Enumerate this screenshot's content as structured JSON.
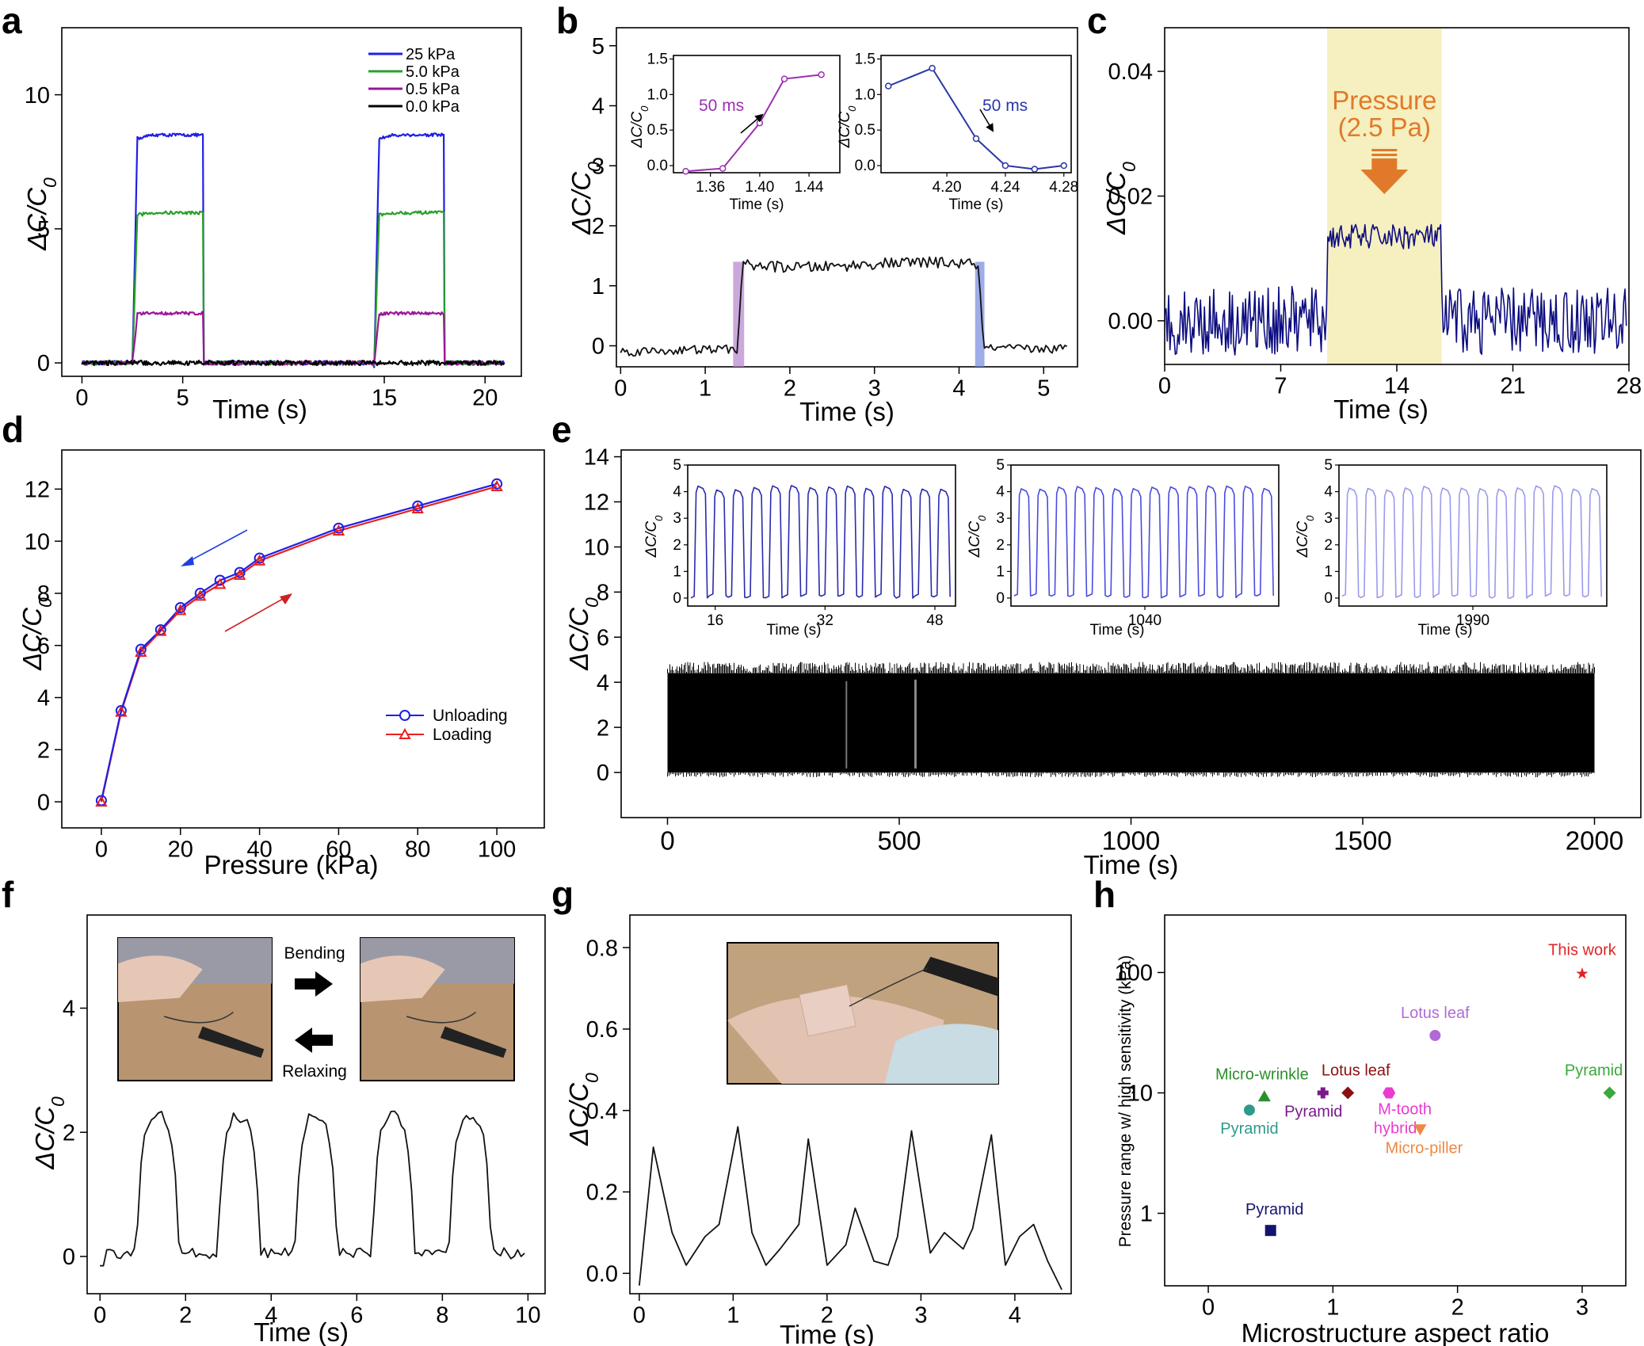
{
  "figure": {
    "panel_letters": [
      "a",
      "b",
      "c",
      "d",
      "e",
      "f",
      "g",
      "h"
    ]
  },
  "chart_data": [
    {
      "id": "a",
      "type": "line",
      "xlabel": "Time (s)",
      "ylabel": "ΔC/C0",
      "xlim": [
        -1,
        21.8
      ],
      "ylim": [
        -0.5,
        12.5
      ],
      "xticks": [
        0,
        5,
        15,
        20
      ],
      "yticks": [
        0,
        5,
        10
      ],
      "pulses": [
        [
          2.5,
          6.0
        ],
        [
          14.5,
          18.0
        ]
      ],
      "series": [
        {
          "name": "25 kPa",
          "color": "#1f1fe6",
          "plateau": 8.5
        },
        {
          "name": "5.0 kPa",
          "color": "#2aa02a",
          "plateau": 5.6
        },
        {
          "name": "0.5 kPa",
          "color": "#9b159b",
          "plateau": 1.85
        },
        {
          "name": "0.0 kPa",
          "color": "#000000",
          "plateau": 0.0
        }
      ]
    },
    {
      "id": "b",
      "type": "line",
      "xlabel": "Time (s)",
      "ylabel": "ΔC/C0",
      "xlim": [
        -0.05,
        5.4
      ],
      "ylim": [
        -0.35,
        5.3
      ],
      "xticks": [
        0,
        1,
        2,
        3,
        4,
        5
      ],
      "yticks": [
        0,
        1,
        2,
        3,
        4,
        5
      ],
      "on_time": 1.38,
      "off_time": 4.23,
      "baseline": -0.1,
      "plateau": 1.35,
      "insets": [
        {
          "xlabel": "Time (s)",
          "ylabel": "ΔC/C0",
          "color": "#9b30b0",
          "annotation": "50 ms",
          "xlim": [
            1.33,
            1.465
          ],
          "ylim": [
            -0.1,
            1.55
          ],
          "xticks": [
            1.36,
            1.4,
            1.44
          ],
          "ytick_labels": [
            "1.5",
            "1.0",
            "0.5",
            "0.0"
          ],
          "x": [
            1.34,
            1.37,
            1.4,
            1.42,
            1.45
          ],
          "y": [
            -0.08,
            -0.04,
            0.6,
            1.22,
            1.28
          ]
        },
        {
          "xlabel": "Time (s)",
          "ylabel": "ΔC/C0",
          "color": "#2b36a8",
          "annotation": "50 ms",
          "xlim": [
            4.155,
            4.285
          ],
          "ylim": [
            -0.1,
            1.55
          ],
          "xticks": [
            4.2,
            4.24,
            4.28
          ],
          "ytick_labels": [
            "1.5",
            "1.0",
            "0.5",
            "0.0"
          ],
          "x": [
            4.16,
            4.19,
            4.22,
            4.24,
            4.26,
            4.28
          ],
          "y": [
            1.12,
            1.37,
            0.38,
            0.0,
            -0.05,
            0.0
          ]
        }
      ]
    },
    {
      "id": "c",
      "type": "line",
      "xlabel": "Time (s)",
      "ylabel": "ΔC/C0",
      "xlim": [
        0,
        28
      ],
      "ylim": [
        -0.007,
        0.047
      ],
      "xticks": [
        0,
        7,
        14,
        21,
        28
      ],
      "ytick_labels": [
        "0.00",
        "0.02",
        "0.04"
      ],
      "yticks": [
        0,
        0.02,
        0.04
      ],
      "highlight": [
        9.8,
        16.7
      ],
      "annotation": [
        "Pressure",
        "(2.5 Pa)"
      ],
      "baseline": 0.0,
      "plateau": 0.0135,
      "color": "#0c0c80"
    },
    {
      "id": "d",
      "type": "line",
      "xlabel": "Pressure (kPa)",
      "ylabel": "ΔC/C0",
      "xlim": [
        -10,
        112
      ],
      "ylim": [
        -1,
        13.5
      ],
      "xticks": [
        0,
        20,
        40,
        60,
        80,
        100
      ],
      "yticks": [
        0,
        2,
        4,
        6,
        8,
        10,
        12
      ],
      "x": [
        0,
        5,
        10,
        15,
        20,
        25,
        30,
        35,
        40,
        60,
        80,
        100
      ],
      "series": [
        {
          "name": "Unloading",
          "color": "#1f1fe6",
          "marker": "circle",
          "values": [
            0.05,
            3.5,
            5.85,
            6.6,
            7.45,
            8.0,
            8.5,
            8.8,
            9.35,
            10.5,
            11.35,
            12.2
          ]
        },
        {
          "name": "Loading",
          "color": "#e62020",
          "marker": "triangle",
          "values": [
            0.0,
            3.45,
            5.75,
            6.55,
            7.35,
            7.9,
            8.35,
            8.7,
            9.25,
            10.4,
            11.25,
            12.1
          ]
        }
      ]
    },
    {
      "id": "e",
      "type": "line",
      "xlabel": "Time (s)",
      "ylabel": "ΔC/C0",
      "xlim": [
        -100,
        2100
      ],
      "ylim": [
        -2,
        14.3
      ],
      "xticks": [
        0,
        500,
        1000,
        1500,
        2000
      ],
      "yticks": [
        0,
        2,
        4,
        6,
        8,
        10,
        12,
        14
      ],
      "cycle_amplitude": 4.4,
      "insets": [
        {
          "xlabel": "Time (s)",
          "ylabel": "ΔC/C0",
          "color": "#2a2ab0",
          "xlim": [
            12,
            51
          ],
          "xticks": [
            16,
            32,
            48
          ],
          "xtick_labels": [
            "16",
            "32",
            "48"
          ],
          "ylim": [
            -0.3,
            5
          ],
          "yticks": [
            0,
            1,
            2,
            3,
            4,
            5
          ]
        },
        {
          "xlabel": "Time (s)",
          "ylabel": "ΔC/C0",
          "color": "#4b4be0",
          "xlim": [
            1020,
            1060
          ],
          "xticks": [
            1040
          ],
          "xtick_labels": [
            "1040"
          ],
          "ylim": [
            -0.3,
            5
          ],
          "yticks": [
            0,
            1,
            2,
            3,
            4,
            5
          ]
        },
        {
          "xlabel": "Time (s)",
          "ylabel": "ΔC/C0",
          "color": "#9a9aee",
          "xlim": [
            1970,
            2010
          ],
          "xticks": [
            1990
          ],
          "xtick_labels": [
            "1990"
          ],
          "ylim": [
            -0.3,
            5
          ],
          "yticks": [
            0,
            1,
            2,
            3,
            4,
            5
          ]
        }
      ]
    },
    {
      "id": "f",
      "type": "line",
      "xlabel": "Time (s)",
      "ylabel": "ΔC/C0",
      "xlim": [
        -0.3,
        10.4
      ],
      "ylim": [
        -0.6,
        5.5
      ],
      "xticks": [
        0,
        2,
        4,
        6,
        8,
        10
      ],
      "yticks": [
        0,
        2,
        4
      ],
      "peak_times": [
        1.3,
        3.2,
        5.0,
        6.8,
        8.6
      ],
      "peak_value": 2.25,
      "photo_labels": [
        "Bending",
        "Relaxing"
      ]
    },
    {
      "id": "g",
      "type": "line",
      "xlabel": "Time (s)",
      "ylabel": "ΔC/C0",
      "xlim": [
        -0.1,
        4.6
      ],
      "ylim": [
        -0.05,
        0.88
      ],
      "xticks": [
        0,
        1,
        2,
        3,
        4
      ],
      "ytick_labels": [
        "0.0",
        "0.2",
        "0.4",
        "0.6",
        "0.8"
      ],
      "yticks": [
        0,
        0.2,
        0.4,
        0.6,
        0.8
      ],
      "x": [
        0.0,
        0.15,
        0.35,
        0.5,
        0.7,
        0.85,
        1.05,
        1.2,
        1.35,
        1.5,
        1.7,
        1.8,
        2.0,
        2.2,
        2.3,
        2.5,
        2.65,
        2.75,
        2.9,
        3.1,
        3.25,
        3.45,
        3.55,
        3.75,
        3.9,
        4.05,
        4.2,
        4.35,
        4.5
      ],
      "y": [
        -0.03,
        0.31,
        0.1,
        0.02,
        0.09,
        0.12,
        0.36,
        0.1,
        0.02,
        0.06,
        0.12,
        0.33,
        0.02,
        0.07,
        0.16,
        0.03,
        0.02,
        0.09,
        0.35,
        0.05,
        0.1,
        0.06,
        0.11,
        0.34,
        0.02,
        0.09,
        0.12,
        0.03,
        -0.04
      ]
    },
    {
      "id": "h",
      "type": "scatter",
      "xlabel": "Microstructure aspect ratio",
      "ylabel": "Pressure range w/ high sensitivity (kPa)",
      "xlim": [
        -0.35,
        3.35
      ],
      "ylog": true,
      "ylim": [
        0.25,
        300
      ],
      "xticks": [
        0,
        1,
        2,
        3
      ],
      "ytick_labels": [
        "1",
        "10",
        "100"
      ],
      "yticks": [
        1,
        10,
        100
      ],
      "points": [
        {
          "label": "This work",
          "x": 3.0,
          "y": 100,
          "color": "#e02424",
          "marker": "star"
        },
        {
          "label": "Lotus leaf",
          "x": 1.82,
          "y": 30,
          "color": "#b06ad8",
          "marker": "circle"
        },
        {
          "label": "Pyramid",
          "x": 3.22,
          "y": 10,
          "color": "#3aa83a",
          "marker": "diamond"
        },
        {
          "label": "Micro-wrinkle",
          "x": 0.45,
          "y": 9.3,
          "color": "#2b8f2b",
          "marker": "triangle"
        },
        {
          "label": "Pyramid",
          "x": 0.33,
          "y": 7.2,
          "color": "#2e9a8a",
          "marker": "circle"
        },
        {
          "label": "Lotus leaf",
          "x": 1.12,
          "y": 10,
          "color": "#8b1010",
          "marker": "diamond"
        },
        {
          "label": "Pyramid",
          "x": 0.92,
          "y": 10,
          "color": "#7a1a8a",
          "marker": "plus"
        },
        {
          "label": "M-tooth hybrid",
          "x": 1.45,
          "y": 10,
          "color": "#e83cd0",
          "marker": "hexagon"
        },
        {
          "label": "Micro-piller",
          "x": 1.7,
          "y": 5,
          "color": "#ee8844",
          "marker": "triangle-down"
        },
        {
          "label": "Pyramid",
          "x": 0.5,
          "y": 0.72,
          "color": "#141470",
          "marker": "square"
        }
      ]
    }
  ]
}
